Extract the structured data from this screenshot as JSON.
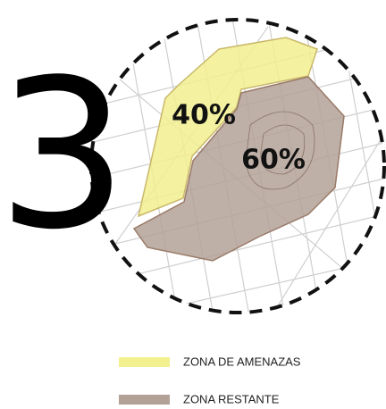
{
  "number": "3",
  "zones": [
    {
      "label": "40%",
      "name": "ZONA DE AMENAZAS",
      "color": "#f2f08f"
    },
    {
      "label": "60%",
      "name": "ZONA RESTANTE",
      "color": "#b3a198"
    }
  ]
}
